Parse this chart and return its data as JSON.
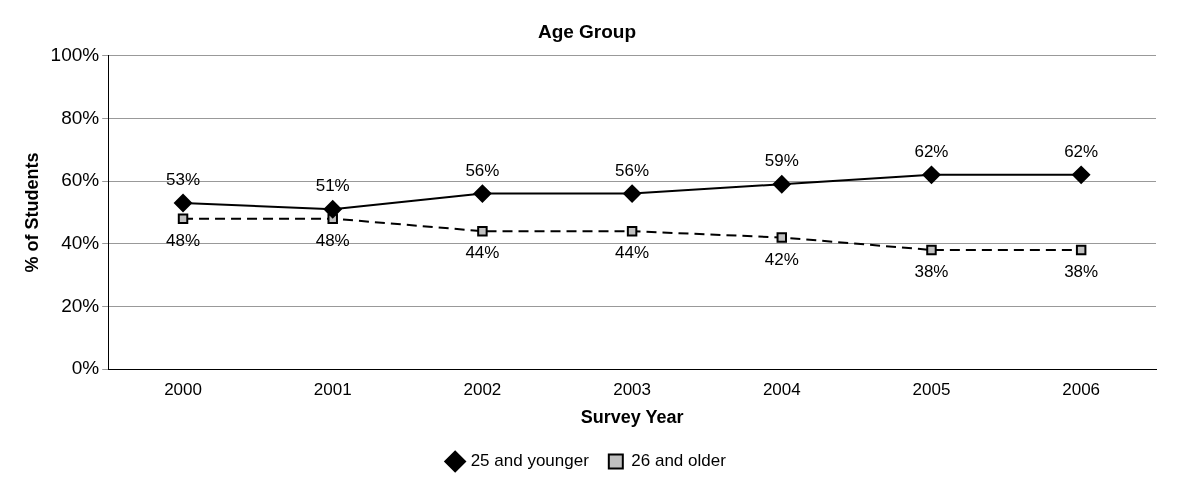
{
  "chart_data": {
    "type": "line",
    "title": "Age Group",
    "xlabel": "Survey Year",
    "ylabel": "% of Students",
    "categories": [
      "2000",
      "2001",
      "2002",
      "2003",
      "2004",
      "2005",
      "2006"
    ],
    "series": [
      {
        "name": "25 and younger",
        "color": "#000000",
        "marker": "diamond",
        "line_style": "solid",
        "values": [
          53,
          51,
          56,
          56,
          59,
          62,
          62
        ],
        "value_labels": [
          "53%",
          "51%",
          "56%",
          "56%",
          "59%",
          "62%",
          "62%"
        ]
      },
      {
        "name": "26 and older",
        "color": "#c0c0c0",
        "marker": "square",
        "line_style": "dashed",
        "values": [
          48,
          48,
          44,
          44,
          42,
          38,
          38
        ],
        "value_labels": [
          "48%",
          "48%",
          "44%",
          "44%",
          "42%",
          "38%",
          "38%"
        ]
      }
    ],
    "ylim": [
      0,
      100
    ],
    "yticks": [
      {
        "value": 0,
        "label": "0%"
      },
      {
        "value": 20,
        "label": "20%"
      },
      {
        "value": 40,
        "label": "40%"
      },
      {
        "value": 60,
        "label": "60%"
      },
      {
        "value": 80,
        "label": "80%"
      },
      {
        "value": 100,
        "label": "100%"
      }
    ],
    "grid": "y",
    "legend": "bottom"
  }
}
